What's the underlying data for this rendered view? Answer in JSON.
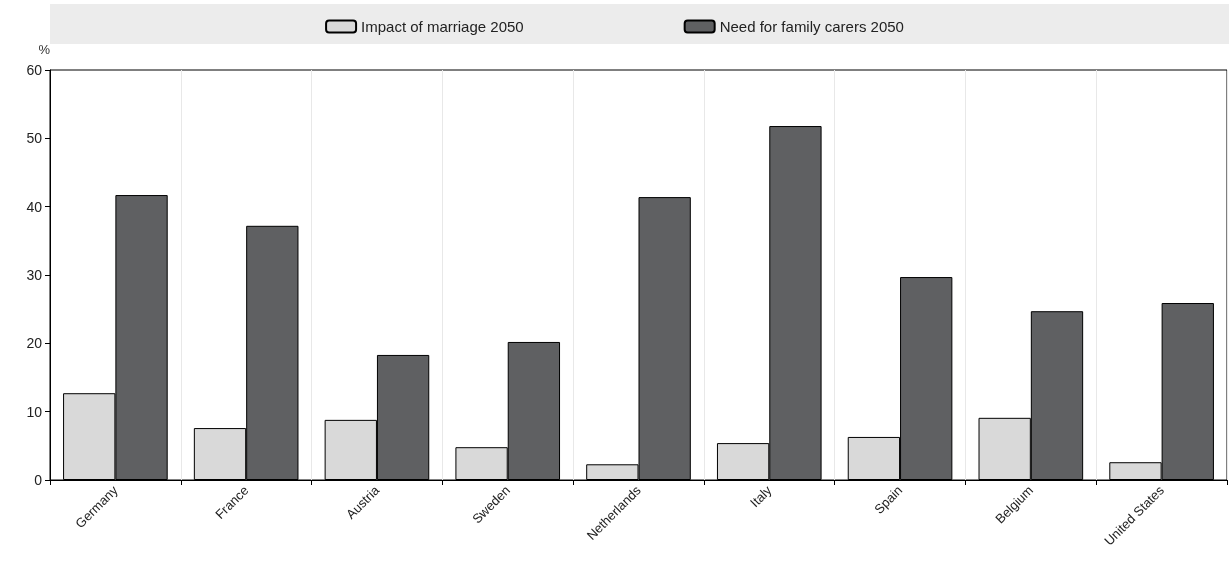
{
  "chart_data": {
    "type": "bar",
    "ylabel": "%",
    "categories": [
      "Germany",
      "France",
      "Austria",
      "Sweden",
      "Netherlands",
      "Italy",
      "Spain",
      "Belgium",
      "United States"
    ],
    "series": [
      {
        "name": "Impact of marriage 2050",
        "color": "#d9d9d9",
        "values": [
          12.7,
          7.6,
          8.8,
          4.8,
          2.3,
          5.4,
          6.3,
          9.1,
          2.6
        ]
      },
      {
        "name": "Need for family carers 2050",
        "color": "#5f6062",
        "values": [
          41.7,
          37.2,
          18.3,
          20.2,
          41.4,
          51.8,
          29.7,
          24.7,
          25.9
        ]
      }
    ],
    "ylim": [
      0,
      60
    ],
    "yticks": [
      0,
      10,
      20,
      30,
      40,
      50,
      60
    ],
    "grid": "x",
    "legend": "top"
  }
}
